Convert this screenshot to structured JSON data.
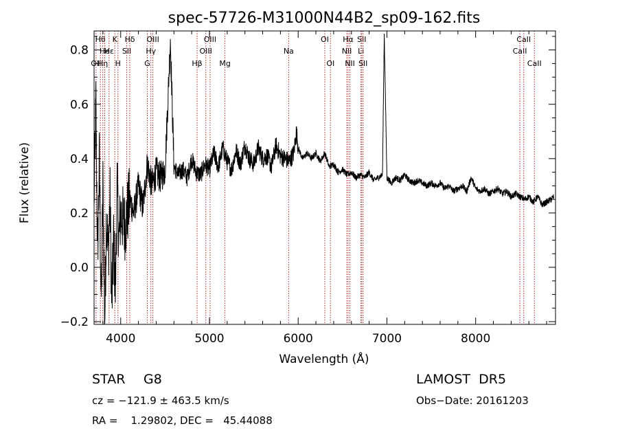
{
  "chart_data": {
    "type": "line",
    "title": "spec-57726-M31000N44B2_sp09-162.fits",
    "xlabel": "Wavelength (Å)",
    "ylabel": "Flux (relative)",
    "xlim": [
      3700,
      8900
    ],
    "ylim": [
      -0.21,
      0.87
    ],
    "x_ticks": [
      4000,
      5000,
      6000,
      7000,
      8000
    ],
    "x_tick_labels": [
      "4000",
      "5000",
      "6000",
      "7000",
      "8000"
    ],
    "y_ticks": [
      -0.2,
      0.0,
      0.2,
      0.4,
      0.6,
      0.8
    ],
    "y_tick_labels": [
      "−0.2",
      "0.0",
      "0.2",
      "0.4",
      "0.6",
      "0.8"
    ],
    "grid": false,
    "line_color": "#000000",
    "marker_color": "#b22222",
    "series": [
      {
        "x": [
          3700,
          3720,
          3740,
          3760,
          3780,
          3800,
          3820,
          3840,
          3860,
          3880,
          3900,
          3920,
          3940,
          3960,
          3980,
          4000,
          4050,
          4100,
          4150,
          4200,
          4250,
          4300,
          4350,
          4400,
          4450,
          4500,
          4560,
          4600,
          4650,
          4700,
          4750,
          4800,
          4850,
          4900,
          4950,
          5000,
          5050,
          5100,
          5150,
          5200,
          5250,
          5300,
          5350,
          5400,
          5450,
          5500,
          5550,
          5600,
          5650,
          5700,
          5750,
          5800,
          5850,
          5900,
          5950,
          5980,
          6000,
          6050,
          6100,
          6150,
          6200,
          6250,
          6300,
          6350,
          6400,
          6450,
          6500,
          6550,
          6600,
          6650,
          6700,
          6750,
          6800,
          6850,
          6900,
          6950,
          6970,
          7000,
          7050,
          7100,
          7150,
          7200,
          7250,
          7300,
          7350,
          7400,
          7450,
          7500,
          7550,
          7600,
          7650,
          7700,
          7750,
          7800,
          7850,
          7900,
          7950,
          8000,
          8050,
          8100,
          8150,
          8200,
          8250,
          8300,
          8350,
          8400,
          8450,
          8500,
          8550,
          8600,
          8650,
          8700,
          8750,
          8800,
          8850,
          8880
        ],
        "y": [
          0.25,
          0.6,
          0.05,
          0.4,
          -0.15,
          0.3,
          -0.21,
          0.2,
          0.05,
          0.25,
          -0.15,
          0.1,
          -0.08,
          0.3,
          0.1,
          0.2,
          0.15,
          0.25,
          0.2,
          0.3,
          0.22,
          0.38,
          0.3,
          0.35,
          0.33,
          0.36,
          0.84,
          0.37,
          0.34,
          0.36,
          0.33,
          0.4,
          0.35,
          0.34,
          0.38,
          0.36,
          0.42,
          0.37,
          0.44,
          0.39,
          0.36,
          0.43,
          0.38,
          0.45,
          0.4,
          0.38,
          0.44,
          0.4,
          0.41,
          0.37,
          0.45,
          0.41,
          0.4,
          0.39,
          0.42,
          0.5,
          0.44,
          0.4,
          0.42,
          0.4,
          0.42,
          0.39,
          0.42,
          0.37,
          0.38,
          0.35,
          0.36,
          0.34,
          0.35,
          0.33,
          0.34,
          0.33,
          0.35,
          0.32,
          0.33,
          0.34,
          0.86,
          0.33,
          0.31,
          0.33,
          0.32,
          0.34,
          0.32,
          0.31,
          0.32,
          0.31,
          0.3,
          0.31,
          0.3,
          0.31,
          0.29,
          0.3,
          0.28,
          0.29,
          0.3,
          0.28,
          0.33,
          0.29,
          0.28,
          0.29,
          0.27,
          0.28,
          0.29,
          0.27,
          0.28,
          0.26,
          0.27,
          0.26,
          0.25,
          0.26,
          0.24,
          0.26,
          0.23,
          0.24,
          0.25,
          0.26
        ]
      }
    ],
    "line_markers": [
      {
        "wavelength": 3722,
        "label": "OII",
        "row": 2
      },
      {
        "wavelength": 3771,
        "label": "Hθ",
        "row": 0
      },
      {
        "wavelength": 3798,
        "label": "Hη",
        "row": 2
      },
      {
        "wavelength": 3820,
        "label": "He",
        "row": 1
      },
      {
        "wavelength": 3869,
        "label": "Hε",
        "row": 1
      },
      {
        "wavelength": 3934,
        "label": "K",
        "row": 0
      },
      {
        "wavelength": 3969,
        "label": "H",
        "row": 2
      },
      {
        "wavelength": 4068,
        "label": "SII",
        "row": 1
      },
      {
        "wavelength": 4102,
        "label": "Hδ",
        "row": 0
      },
      {
        "wavelength": 4300,
        "label": "G",
        "row": 2
      },
      {
        "wavelength": 4340,
        "label": "Hγ",
        "row": 1
      },
      {
        "wavelength": 4363,
        "label": "OIII",
        "row": 0
      },
      {
        "wavelength": 4861,
        "label": "Hβ",
        "row": 2
      },
      {
        "wavelength": 4959,
        "label": "OIII",
        "row": 1
      },
      {
        "wavelength": 5007,
        "label": "OIII",
        "row": 0
      },
      {
        "wavelength": 5175,
        "label": "Mg",
        "row": 2
      },
      {
        "wavelength": 5893,
        "label": "Na",
        "row": 1
      },
      {
        "wavelength": 6300,
        "label": "OI",
        "row": 0
      },
      {
        "wavelength": 6364,
        "label": "OI",
        "row": 2
      },
      {
        "wavelength": 6548,
        "label": "NII",
        "row": 1
      },
      {
        "wavelength": 6563,
        "label": "Hα",
        "row": 0
      },
      {
        "wavelength": 6583,
        "label": "NII",
        "row": 2
      },
      {
        "wavelength": 6708,
        "label": "Li",
        "row": 1
      },
      {
        "wavelength": 6716,
        "label": "SII",
        "row": 0
      },
      {
        "wavelength": 6731,
        "label": "SII",
        "row": 2
      },
      {
        "wavelength": 8498,
        "label": "CaII",
        "row": 1
      },
      {
        "wavelength": 8542,
        "label": "CaII",
        "row": 0
      },
      {
        "wavelength": 8662,
        "label": "CaII",
        "row": 2
      }
    ]
  },
  "info": {
    "object_class": "STAR",
    "subclass": "G8",
    "survey": "LAMOST  DR5",
    "redshift": "cz = −121.9 ± 463.5 km/s",
    "obs_date": "Obs−Date: 20161203",
    "coords": "RA =    1.29802, DEC =   45.44088"
  }
}
